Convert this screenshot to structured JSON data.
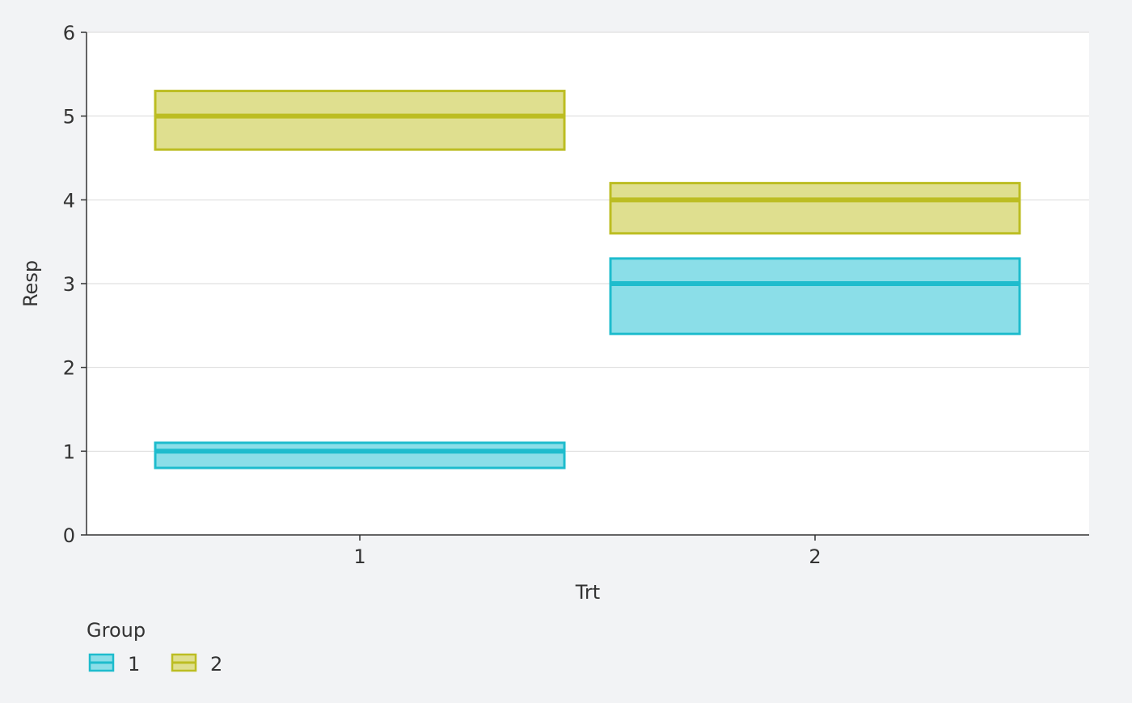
{
  "chart_data": {
    "type": "crossbar",
    "title": "",
    "xlabel": "Trt",
    "ylabel": "Resp",
    "ylim": [
      0,
      6
    ],
    "yticks": [
      "0",
      "1",
      "2",
      "3",
      "4",
      "5",
      "6"
    ],
    "categories": [
      "1",
      "2"
    ],
    "grid": true,
    "legend": {
      "title": "Group",
      "position": "bottom-left"
    },
    "series": [
      {
        "name": "1",
        "color": "#1ebccd",
        "fill": "#8bdee8",
        "points": [
          {
            "x": "1",
            "y": 1.0,
            "lower": 0.8,
            "upper": 1.1
          },
          {
            "x": "2",
            "y": 3.0,
            "lower": 2.4,
            "upper": 3.3
          }
        ]
      },
      {
        "name": "2",
        "color": "#bcbd22",
        "fill": "#dfdf8f",
        "points": [
          {
            "x": "1",
            "y": 5.0,
            "lower": 4.6,
            "upper": 5.3
          },
          {
            "x": "2",
            "y": 4.0,
            "lower": 3.6,
            "upper": 4.2
          }
        ]
      }
    ]
  }
}
